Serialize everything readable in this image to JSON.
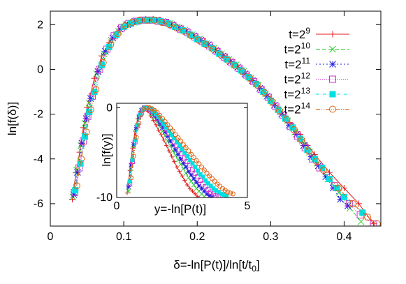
{
  "chart_data": [
    {
      "type": "scatter",
      "xlabel": "δ=-ln[P(t)]/ln[t/t",
      "xlabel_sub": "0",
      "xlabel_close": "]",
      "ylabel": "ln[f(δ)]",
      "xlim": [
        0,
        0.45
      ],
      "ylim": [
        -7,
        2.6
      ],
      "xticks": [
        0,
        0.1,
        0.2,
        0.3,
        0.4
      ],
      "xtick_labels": [
        "0",
        "0.1",
        "0.2",
        "0.3",
        "0.4"
      ],
      "yticks": [
        2,
        0,
        -2,
        -4,
        -6
      ],
      "ytick_labels": [
        "2",
        "0",
        "-2",
        "-4",
        "-6"
      ],
      "legend_position": "top-right",
      "series": [
        {
          "name": "t=2^9",
          "base": "t=2",
          "exp": "9",
          "color": "#e41a1c",
          "marker": "plus",
          "dash": "",
          "x": [
            0.03,
            0.035,
            0.04,
            0.045,
            0.05,
            0.06,
            0.07,
            0.08,
            0.09,
            0.1,
            0.11,
            0.12,
            0.13,
            0.14,
            0.15,
            0.16,
            0.17,
            0.18,
            0.19,
            0.2,
            0.21,
            0.22,
            0.23,
            0.24,
            0.25,
            0.26,
            0.27,
            0.28,
            0.29,
            0.3,
            0.31,
            0.32,
            0.33,
            0.34,
            0.35,
            0.36,
            0.38,
            0.4,
            0.42,
            0.44
          ],
          "y": [
            -5.8,
            -4.6,
            -3.7,
            -2.6,
            -1.7,
            -0.4,
            0.6,
            1.2,
            1.6,
            1.9,
            2.1,
            2.2,
            2.25,
            2.25,
            2.2,
            2.1,
            1.95,
            1.8,
            1.6,
            1.45,
            1.25,
            1.0,
            0.8,
            0.55,
            0.3,
            0.0,
            -0.3,
            -0.6,
            -0.9,
            -1.3,
            -1.7,
            -2.1,
            -2.5,
            -2.9,
            -3.4,
            -3.8,
            -4.6,
            -5.3,
            -6.0,
            -6.9
          ]
        },
        {
          "name": "t=2^10",
          "base": "t=2",
          "exp": "10",
          "color": "#33cc33",
          "marker": "x",
          "dash": "6,3",
          "x": [
            0.031,
            0.036,
            0.042,
            0.047,
            0.053,
            0.063,
            0.073,
            0.083,
            0.093,
            0.103,
            0.113,
            0.123,
            0.133,
            0.143,
            0.153,
            0.163,
            0.173,
            0.183,
            0.193,
            0.203,
            0.213,
            0.223,
            0.233,
            0.243,
            0.253,
            0.263,
            0.273,
            0.283,
            0.293,
            0.303,
            0.313,
            0.323,
            0.333,
            0.343,
            0.353,
            0.363,
            0.378,
            0.393,
            0.408,
            0.423
          ],
          "y": [
            -5.7,
            -4.5,
            -3.4,
            -2.4,
            -1.5,
            -0.2,
            0.7,
            1.3,
            1.7,
            2.0,
            2.1,
            2.2,
            2.2,
            2.2,
            2.15,
            2.05,
            1.9,
            1.75,
            1.55,
            1.35,
            1.15,
            0.95,
            0.7,
            0.45,
            0.2,
            -0.1,
            -0.4,
            -0.7,
            -1.1,
            -1.5,
            -1.9,
            -2.3,
            -2.8,
            -3.2,
            -3.7,
            -4.2,
            -4.9,
            -5.5,
            -6.2,
            -6.8
          ]
        },
        {
          "name": "t=2^11",
          "base": "t=2",
          "exp": "11",
          "color": "#1f1fe0",
          "marker": "star",
          "dash": "2,3",
          "x": [
            0.032,
            0.037,
            0.043,
            0.049,
            0.055,
            0.065,
            0.075,
            0.085,
            0.095,
            0.105,
            0.115,
            0.125,
            0.135,
            0.145,
            0.155,
            0.165,
            0.175,
            0.185,
            0.195,
            0.205,
            0.215,
            0.225,
            0.235,
            0.245,
            0.255,
            0.265,
            0.275,
            0.285,
            0.295,
            0.305,
            0.315,
            0.325,
            0.335,
            0.345,
            0.355,
            0.365,
            0.375,
            0.385,
            0.395,
            0.405
          ],
          "y": [
            -5.6,
            -4.6,
            -3.3,
            -2.2,
            -1.3,
            -0.1,
            0.8,
            1.4,
            1.8,
            2.0,
            2.15,
            2.2,
            2.2,
            2.2,
            2.1,
            2.0,
            1.85,
            1.7,
            1.5,
            1.3,
            1.1,
            0.85,
            0.6,
            0.35,
            0.1,
            -0.2,
            -0.5,
            -0.85,
            -1.2,
            -1.6,
            -2.0,
            -2.5,
            -2.9,
            -3.4,
            -3.9,
            -4.3,
            -4.8,
            -5.3,
            -5.8,
            -6.1
          ]
        },
        {
          "name": "t=2^12",
          "base": "t=2",
          "exp": "12",
          "color": "#cc33cc",
          "marker": "square",
          "dash": "1,2",
          "x": [
            0.033,
            0.039,
            0.045,
            0.051,
            0.057,
            0.067,
            0.077,
            0.087,
            0.097,
            0.107,
            0.117,
            0.127,
            0.137,
            0.147,
            0.157,
            0.167,
            0.177,
            0.187,
            0.197,
            0.207,
            0.217,
            0.227,
            0.237,
            0.247,
            0.257,
            0.267,
            0.277,
            0.287,
            0.297,
            0.307,
            0.317,
            0.327,
            0.337,
            0.347,
            0.357,
            0.367,
            0.387,
            0.407,
            0.422,
            0.44
          ],
          "y": [
            -5.5,
            -4.4,
            -3.2,
            -2.1,
            -1.2,
            0.0,
            0.9,
            1.5,
            1.85,
            2.05,
            2.15,
            2.2,
            2.2,
            2.15,
            2.1,
            1.95,
            1.8,
            1.65,
            1.45,
            1.25,
            1.05,
            0.8,
            0.55,
            0.3,
            0.05,
            -0.25,
            -0.55,
            -0.9,
            -1.25,
            -1.65,
            -2.05,
            -2.55,
            -3.0,
            -3.5,
            -4.0,
            -4.4,
            -5.2,
            -6.0,
            -6.5,
            -6.9
          ]
        },
        {
          "name": "t=2^13",
          "base": "t=2",
          "exp": "13",
          "color": "#00e0e0",
          "marker": "filled-square",
          "dash": "5,2,1,2",
          "x": [
            0.034,
            0.041,
            0.047,
            0.053,
            0.06,
            0.07,
            0.08,
            0.09,
            0.1,
            0.11,
            0.12,
            0.13,
            0.14,
            0.15,
            0.16,
            0.17,
            0.18,
            0.19,
            0.2,
            0.21,
            0.22,
            0.23,
            0.24,
            0.25,
            0.26,
            0.27,
            0.28,
            0.29,
            0.3,
            0.31,
            0.32,
            0.33,
            0.34,
            0.35,
            0.36,
            0.37,
            0.38,
            0.39,
            0.4,
            0.425
          ],
          "y": [
            -5.4,
            -4.2,
            -3.0,
            -1.9,
            -1.0,
            0.2,
            1.0,
            1.55,
            1.9,
            2.05,
            2.15,
            2.2,
            2.2,
            2.15,
            2.05,
            1.9,
            1.75,
            1.55,
            1.35,
            1.15,
            0.95,
            0.7,
            0.45,
            0.2,
            -0.05,
            -0.35,
            -0.65,
            -1.0,
            -1.4,
            -1.8,
            -2.2,
            -2.6,
            -3.1,
            -3.6,
            -4.0,
            -4.4,
            -4.9,
            -5.3,
            -5.7,
            -6.4
          ]
        },
        {
          "name": "t=2^14",
          "base": "t=2",
          "exp": "14",
          "color": "#e06010",
          "marker": "circle",
          "dash": "6,2,1,2,1,2",
          "x": [
            0.036,
            0.042,
            0.049,
            0.055,
            0.062,
            0.072,
            0.082,
            0.092,
            0.102,
            0.112,
            0.122,
            0.132,
            0.142,
            0.152,
            0.162,
            0.172,
            0.182,
            0.192,
            0.202,
            0.212,
            0.222,
            0.232,
            0.242,
            0.252,
            0.262,
            0.272,
            0.282,
            0.292,
            0.302,
            0.312,
            0.322,
            0.332,
            0.342,
            0.352,
            0.362,
            0.372,
            0.392,
            0.412,
            0.432,
            0.445
          ],
          "y": [
            -5.2,
            -4.0,
            -2.8,
            -1.8,
            -0.9,
            0.3,
            1.1,
            1.6,
            1.95,
            2.1,
            2.2,
            2.2,
            2.2,
            2.1,
            2.0,
            1.85,
            1.7,
            1.5,
            1.3,
            1.1,
            0.9,
            0.65,
            0.4,
            0.15,
            -0.1,
            -0.4,
            -0.7,
            -1.05,
            -1.45,
            -1.85,
            -2.25,
            -2.7,
            -3.15,
            -3.65,
            -4.1,
            -4.5,
            -5.3,
            -6.0,
            -6.6,
            -6.9
          ]
        }
      ]
    },
    {
      "type": "scatter",
      "xlabel": "y=-ln[P(t)]",
      "ylabel": "ln[f(y)]",
      "xlim": [
        0,
        5
      ],
      "ylim": [
        -10,
        0.5
      ],
      "xticks": [
        0,
        5
      ],
      "xtick_labels": [
        "0",
        "5"
      ],
      "yticks": [
        0,
        -10
      ],
      "ytick_labels": [
        "0",
        "-10"
      ],
      "series": [
        {
          "color": "#e41a1c",
          "marker": "plus",
          "dash": "",
          "x": [
            0.4,
            0.5,
            0.6,
            0.7,
            0.8,
            0.9,
            1.0,
            1.1,
            1.2,
            1.3,
            1.4,
            1.5,
            1.6,
            1.7,
            1.8,
            1.9,
            2.0,
            2.1,
            2.2,
            2.3,
            2.4,
            2.5,
            2.6,
            2.7,
            2.8,
            2.9,
            3.0,
            3.1
          ],
          "y": [
            -9.5,
            -7.0,
            -4.5,
            -2.6,
            -1.2,
            -0.4,
            -0.05,
            -0.1,
            -0.4,
            -0.9,
            -1.4,
            -1.9,
            -2.5,
            -3.0,
            -3.6,
            -4.2,
            -4.8,
            -5.4,
            -6.0,
            -6.6,
            -7.1,
            -7.6,
            -8.1,
            -8.6,
            -9.0,
            -9.3,
            -9.6,
            -9.9
          ]
        },
        {
          "color": "#33cc33",
          "marker": "x",
          "dash": "6,3",
          "x": [
            0.45,
            0.55,
            0.65,
            0.75,
            0.85,
            0.95,
            1.05,
            1.15,
            1.25,
            1.35,
            1.45,
            1.55,
            1.65,
            1.75,
            1.85,
            1.95,
            2.05,
            2.15,
            2.25,
            2.35,
            2.45,
            2.55,
            2.65,
            2.75,
            2.85,
            2.95,
            3.05,
            3.15,
            3.25,
            3.35
          ],
          "y": [
            -9.3,
            -6.8,
            -4.3,
            -2.4,
            -1.1,
            -0.3,
            -0.05,
            -0.05,
            -0.3,
            -0.7,
            -1.1,
            -1.6,
            -2.1,
            -2.6,
            -3.1,
            -3.7,
            -4.2,
            -4.8,
            -5.3,
            -5.8,
            -6.3,
            -6.8,
            -7.3,
            -7.8,
            -8.2,
            -8.6,
            -9.0,
            -9.3,
            -9.6,
            -9.9
          ]
        },
        {
          "color": "#1f1fe0",
          "marker": "star",
          "dash": "2,3",
          "x": [
            0.45,
            0.55,
            0.65,
            0.75,
            0.85,
            0.95,
            1.05,
            1.15,
            1.25,
            1.35,
            1.45,
            1.55,
            1.65,
            1.75,
            1.85,
            1.95,
            2.05,
            2.15,
            2.25,
            2.35,
            2.45,
            2.55,
            2.65,
            2.75,
            2.85,
            2.95,
            3.05,
            3.15,
            3.25,
            3.35,
            3.45,
            3.55,
            3.65
          ],
          "y": [
            -8.8,
            -6.4,
            -4.1,
            -2.2,
            -1.0,
            -0.3,
            0.0,
            -0.05,
            -0.2,
            -0.5,
            -0.9,
            -1.3,
            -1.8,
            -2.2,
            -2.7,
            -3.2,
            -3.7,
            -4.2,
            -4.7,
            -5.2,
            -5.7,
            -6.2,
            -6.6,
            -7.1,
            -7.5,
            -7.9,
            -8.3,
            -8.7,
            -9.0,
            -9.3,
            -9.6,
            -9.8,
            -9.9
          ]
        },
        {
          "color": "#cc33cc",
          "marker": "square",
          "dash": "1,2",
          "x": [
            0.5,
            0.6,
            0.7,
            0.8,
            0.9,
            1.0,
            1.1,
            1.2,
            1.3,
            1.4,
            1.5,
            1.6,
            1.7,
            1.8,
            1.9,
            2.0,
            2.1,
            2.2,
            2.3,
            2.4,
            2.5,
            2.6,
            2.7,
            2.8,
            2.9,
            3.0,
            3.1,
            3.2,
            3.3,
            3.4,
            3.5,
            3.6,
            3.7,
            3.8,
            3.9
          ],
          "y": [
            -8.5,
            -6.0,
            -3.8,
            -2.0,
            -0.8,
            -0.2,
            0.0,
            -0.05,
            -0.2,
            -0.45,
            -0.8,
            -1.2,
            -1.6,
            -2.0,
            -2.4,
            -2.9,
            -3.3,
            -3.8,
            -4.2,
            -4.7,
            -5.1,
            -5.6,
            -6.0,
            -6.4,
            -6.9,
            -7.3,
            -7.7,
            -8.1,
            -8.5,
            -8.8,
            -9.1,
            -9.4,
            -9.6,
            -9.8,
            -9.9
          ]
        },
        {
          "color": "#00e0e0",
          "marker": "filled-square",
          "dash": "5,2,1,2",
          "x": [
            0.5,
            0.6,
            0.7,
            0.8,
            0.9,
            1.0,
            1.1,
            1.2,
            1.3,
            1.4,
            1.5,
            1.6,
            1.7,
            1.8,
            1.9,
            2.0,
            2.1,
            2.2,
            2.3,
            2.4,
            2.5,
            2.6,
            2.7,
            2.8,
            2.9,
            3.0,
            3.1,
            3.2,
            3.3,
            3.4,
            3.5,
            3.6,
            3.7,
            3.8,
            3.9,
            4.0,
            4.1,
            4.2
          ],
          "y": [
            -8.2,
            -5.8,
            -3.6,
            -1.9,
            -0.8,
            -0.2,
            0.0,
            0.0,
            -0.15,
            -0.4,
            -0.7,
            -1.05,
            -1.4,
            -1.8,
            -2.2,
            -2.6,
            -3.0,
            -3.4,
            -3.8,
            -4.2,
            -4.6,
            -5.0,
            -5.4,
            -5.8,
            -6.2,
            -6.6,
            -7.0,
            -7.4,
            -7.7,
            -8.1,
            -8.4,
            -8.7,
            -9.0,
            -9.2,
            -9.4,
            -9.6,
            -9.7,
            -9.8
          ]
        },
        {
          "color": "#e06010",
          "marker": "circle",
          "dash": "6,2,1,2,1,2",
          "x": [
            0.55,
            0.65,
            0.75,
            0.85,
            0.95,
            1.05,
            1.15,
            1.25,
            1.35,
            1.45,
            1.55,
            1.65,
            1.75,
            1.85,
            1.95,
            2.05,
            2.15,
            2.25,
            2.35,
            2.45,
            2.55,
            2.65,
            2.75,
            2.85,
            2.95,
            3.05,
            3.15,
            3.25,
            3.35,
            3.45,
            3.55,
            3.65,
            3.75,
            3.85,
            3.95,
            4.05,
            4.15,
            4.25,
            4.35,
            4.45
          ],
          "y": [
            -7.8,
            -5.4,
            -3.3,
            -1.7,
            -0.7,
            -0.15,
            0.0,
            0.0,
            -0.1,
            -0.3,
            -0.55,
            -0.85,
            -1.2,
            -1.55,
            -1.9,
            -2.25,
            -2.6,
            -3.0,
            -3.35,
            -3.7,
            -4.1,
            -4.45,
            -4.8,
            -5.2,
            -5.55,
            -5.9,
            -6.25,
            -6.6,
            -6.95,
            -7.3,
            -7.6,
            -7.9,
            -8.2,
            -8.5,
            -8.75,
            -9.0,
            -9.2,
            -9.4,
            -9.5,
            -9.6
          ]
        }
      ]
    }
  ]
}
